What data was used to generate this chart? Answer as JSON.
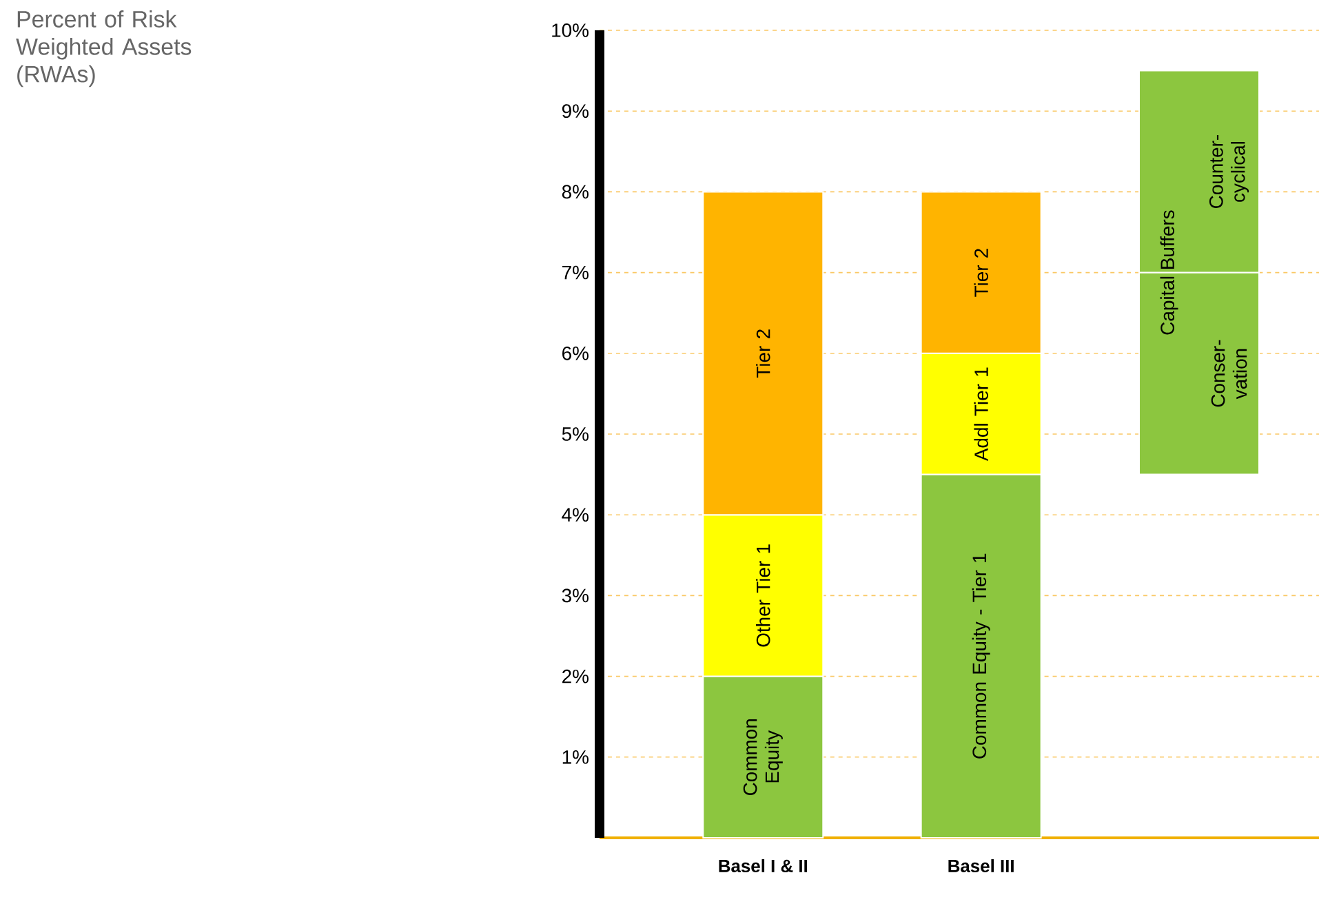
{
  "chart_data": {
    "type": "bar",
    "stacked": true,
    "categories": [
      "Basel I & II",
      "Basel III",
      null
    ],
    "series": [
      {
        "color": "#8cc63f",
        "values": [
          2,
          4.5,
          null
        ],
        "value_labels": [
          "Common Equity",
          "Common Equity - Tier 1",
          null
        ]
      },
      {
        "color": "#ffff00",
        "values": [
          2,
          1.5,
          null
        ],
        "value_labels": [
          "Other Tier 1",
          "Addl Tier 1",
          null
        ]
      },
      {
        "color": "#ffb400",
        "values": [
          4,
          2,
          null
        ],
        "value_labels": [
          "Tier 2",
          "Tier 2",
          null
        ]
      },
      {
        "color": "#8cc63f",
        "values": [
          null,
          null,
          2.5
        ],
        "base": [
          null,
          null,
          4.5
        ],
        "value_labels": [
          null,
          null,
          "Conser-vation"
        ]
      },
      {
        "color": "#8cc63f",
        "values": [
          null,
          null,
          2.5
        ],
        "base": [
          null,
          null,
          7
        ],
        "value_labels": [
          null,
          null,
          "Counter-cyclical"
        ]
      }
    ],
    "annotations": [
      "Percent of Risk Weighted Assets (RWAs)",
      {
        "text": "Capital Buffers",
        "y": 7
      }
    ],
    "ylim": [
      0,
      10
    ],
    "yticks": [
      {
        "value": 1,
        "label": "1%"
      },
      {
        "value": 2,
        "label": "2%"
      },
      {
        "value": 3,
        "label": "3%"
      },
      {
        "value": 4,
        "label": "4%"
      },
      {
        "value": 5,
        "label": "5%"
      },
      {
        "value": 6,
        "label": "6%"
      },
      {
        "value": 7,
        "label": "7%"
      },
      {
        "value": 8,
        "label": "8%"
      },
      {
        "value": 9,
        "label": "9%"
      },
      {
        "value": 10,
        "label": "10%"
      }
    ],
    "grid": "y"
  }
}
